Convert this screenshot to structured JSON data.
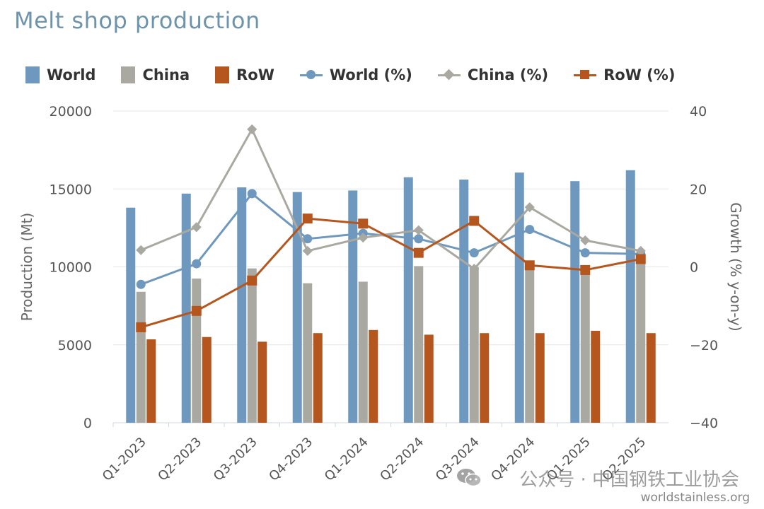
{
  "title": "Melt shop production",
  "legend": [
    {
      "label": "World",
      "kind": "bar",
      "color": "#6e98bd"
    },
    {
      "label": "China",
      "kind": "bar",
      "color": "#a9a9a2"
    },
    {
      "label": "RoW",
      "kind": "bar",
      "color": "#b5561f"
    },
    {
      "label": "World (%)",
      "kind": "line",
      "marker": "circle",
      "color": "#6e98bd"
    },
    {
      "label": "China (%)",
      "kind": "line",
      "marker": "diamond",
      "color": "#a9a9a2"
    },
    {
      "label": "RoW (%)",
      "kind": "line",
      "marker": "square",
      "color": "#b5561f"
    }
  ],
  "watermark": {
    "brand": "公众号 · 中国钢铁工业协会",
    "url": "worldstainless.org",
    "icon": "wechat-icon"
  },
  "chart_data": {
    "type": "bar",
    "title": "Melt shop production",
    "categories": [
      "Q1-2023",
      "Q2-2023",
      "Q3-2023",
      "Q4-2023",
      "Q1-2024",
      "Q2-2024",
      "Q3-2024",
      "Q4-2024",
      "Q1-2025",
      "Q2-2025"
    ],
    "ylabel": "Production (Mt)",
    "y2label": "Growth (% y-on-y)",
    "ylim": [
      0,
      20000
    ],
    "y2lim": [
      -40,
      40
    ],
    "yticks": [
      "20000",
      "15000",
      "10000",
      "5000",
      "0"
    ],
    "y2ticks": [
      "40",
      "20",
      "0",
      "−20",
      "−40"
    ],
    "grid": true,
    "legend_position": "top-left",
    "series": [
      {
        "name": "World",
        "type": "bar",
        "axis": "left",
        "color": "#6e98bd",
        "values": [
          13800,
          14700,
          15100,
          14800,
          14900,
          15750,
          15600,
          16050,
          15500,
          16200
        ]
      },
      {
        "name": "China",
        "type": "bar",
        "axis": "left",
        "color": "#a9a9a2",
        "values": [
          8400,
          9250,
          9900,
          8950,
          9050,
          10050,
          10000,
          10300,
          9600,
          10450
        ]
      },
      {
        "name": "RoW",
        "type": "bar",
        "axis": "left",
        "color": "#b5561f",
        "values": [
          5350,
          5500,
          5200,
          5750,
          5950,
          5650,
          5750,
          5750,
          5900,
          5750
        ]
      },
      {
        "name": "World (%)",
        "type": "line",
        "axis": "right",
        "marker": "circle",
        "color": "#6e98bd",
        "values": [
          -4.5,
          0.8,
          18.8,
          7.2,
          8.6,
          7.2,
          3.6,
          9.6,
          3.6,
          3.3
        ]
      },
      {
        "name": "China (%)",
        "type": "line",
        "axis": "right",
        "marker": "diamond",
        "color": "#a9a9a2",
        "values": [
          4.3,
          10.2,
          35.3,
          4.1,
          7.5,
          9.4,
          -0.5,
          15.3,
          6.8,
          4.1
        ]
      },
      {
        "name": "RoW (%)",
        "type": "line",
        "axis": "right",
        "marker": "square",
        "color": "#b5561f",
        "values": [
          -15.5,
          -11.3,
          -3.5,
          12.4,
          11.1,
          3.6,
          11.8,
          0.4,
          -0.8,
          2.0
        ]
      }
    ]
  }
}
